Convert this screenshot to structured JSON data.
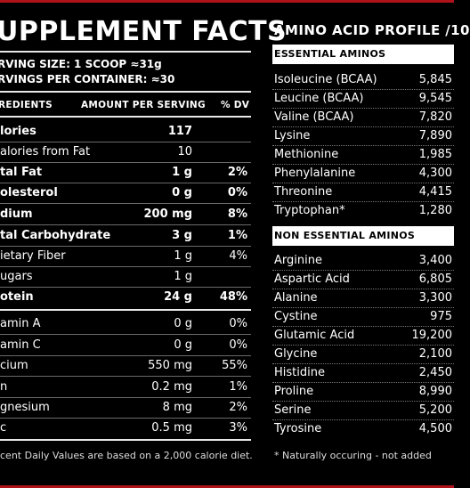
{
  "left": {
    "title": "UPPLEMENT FACTS",
    "serving_size": "RVING SIZE: 1 SCOOP ≈31g",
    "servings_per_container": "RVINGS PER CONTAINER: ≈30",
    "header": {
      "ingredients": "REDIENTS",
      "amount": "AMOUNT PER SERVING",
      "dv": "% DV"
    },
    "rows": [
      {
        "label": "lories",
        "amount": "117",
        "dv": "",
        "bold": true
      },
      {
        "label": "alories from Fat",
        "amount": "10",
        "dv": "",
        "bold": false
      },
      {
        "label": "tal Fat",
        "amount": "1 g",
        "dv": "2%",
        "bold": true
      },
      {
        "label": "olesterol",
        "amount": "0 g",
        "dv": "0%",
        "bold": true
      },
      {
        "label": "dium",
        "amount": "200 mg",
        "dv": "8%",
        "bold": true
      },
      {
        "label": "tal Carbohydrate",
        "amount": "3 g",
        "dv": "1%",
        "bold": true
      },
      {
        "label": "ietary Fiber",
        "amount": "1 g",
        "dv": "4%",
        "bold": false
      },
      {
        "label": "ugars",
        "amount": "1 g",
        "dv": "",
        "bold": false
      },
      {
        "label": "otein",
        "amount": "24 g",
        "dv": "48%",
        "bold": true
      },
      {
        "label": "amin A",
        "amount": "0 g",
        "dv": "0%",
        "bold": false
      },
      {
        "label": "amin C",
        "amount": "0 g",
        "dv": "0%",
        "bold": false
      },
      {
        "label": "cium",
        "amount": "550 mg",
        "dv": "55%",
        "bold": false
      },
      {
        "label": "n",
        "amount": "0.2 mg",
        "dv": "1%",
        "bold": false
      },
      {
        "label": "gnesium",
        "amount": "8 mg",
        "dv": "2%",
        "bold": false
      },
      {
        "label": "c",
        "amount": "0.5 mg",
        "dv": "3%",
        "bold": false
      }
    ],
    "footnote": "cent Daily Values are based on a 2,000 calorie diet."
  },
  "right": {
    "title": "AMINO ACID PROFILE /10",
    "essential_header": "ESSENTIAL AMINOS",
    "essential": [
      {
        "name": "Isoleucine (BCAA)",
        "value": "5,845"
      },
      {
        "name": "Leucine (BCAA)",
        "value": "9,545"
      },
      {
        "name": "Valine (BCAA)",
        "value": "7,820"
      },
      {
        "name": "Lysine",
        "value": "7,890"
      },
      {
        "name": "Methionine",
        "value": "1,985"
      },
      {
        "name": "Phenylalanine",
        "value": "4,300"
      },
      {
        "name": "Threonine",
        "value": "4,415"
      },
      {
        "name": "Tryptophan*",
        "value": "1,280"
      }
    ],
    "nonessential_header": "NON ESSENTIAL AMINOS",
    "nonessential": [
      {
        "name": "Arginine",
        "value": "3,400"
      },
      {
        "name": "Aspartic Acid",
        "value": "6,805"
      },
      {
        "name": "Alanine",
        "value": "3,300"
      },
      {
        "name": "Cystine",
        "value": "975"
      },
      {
        "name": "Glutamic Acid",
        "value": "19,200"
      },
      {
        "name": "Glycine",
        "value": "2,100"
      },
      {
        "name": "Histidine",
        "value": "2,450"
      },
      {
        "name": "Proline",
        "value": "8,990"
      },
      {
        "name": "Serine",
        "value": "5,200"
      },
      {
        "name": "Tyrosine",
        "value": "4,500"
      }
    ],
    "footnote": "*  Naturally occuring - not added"
  }
}
